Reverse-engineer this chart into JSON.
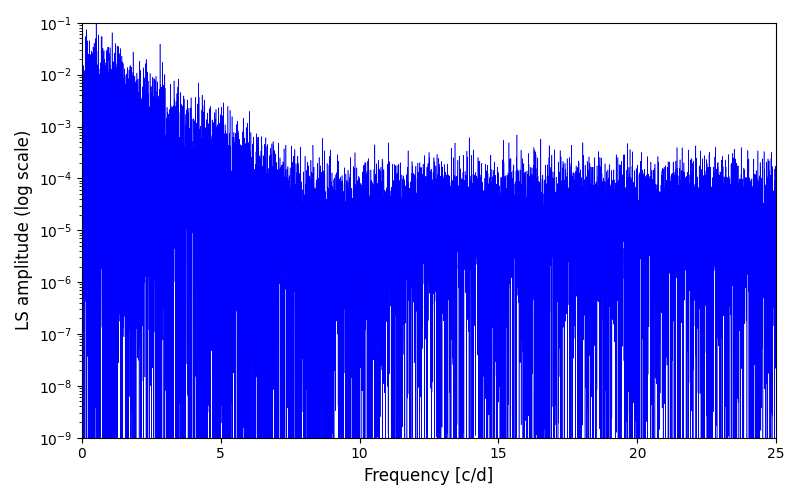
{
  "title": "",
  "xlabel": "Frequency [c/d]",
  "ylabel": "LS amplitude (log scale)",
  "xlim": [
    0,
    25
  ],
  "ylim": [
    1e-09,
    0.1
  ],
  "line_color": "#0000ff",
  "line_width": 0.4,
  "background_color": "#ffffff",
  "seed": 12345,
  "n_points": 8000,
  "freq_max": 25.0,
  "figsize": [
    8.0,
    5.0
  ],
  "dpi": 100
}
